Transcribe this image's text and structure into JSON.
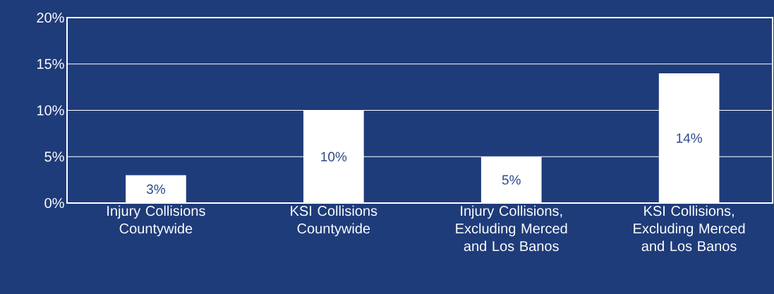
{
  "chart_data": {
    "type": "bar",
    "categories": [
      "Injury Collisions Countywide",
      "KSI Collisions Countywide",
      "Injury Collisions, Excluding Merced and Los Banos",
      "KSI Collisions, Excluding Merced and Los Banos"
    ],
    "values": [
      3,
      10,
      5,
      14
    ],
    "value_labels": [
      "3%",
      "10%",
      "5%",
      "14%"
    ],
    "color": "#ffffff",
    "ylim": [
      0,
      20
    ],
    "yticks": [
      {
        "value": 0,
        "label": "0%"
      },
      {
        "value": 5,
        "label": "5%"
      },
      {
        "value": 10,
        "label": "10%"
      },
      {
        "value": 15,
        "label": "15%"
      },
      {
        "value": 20,
        "label": "20%"
      }
    ],
    "grid": "y"
  }
}
